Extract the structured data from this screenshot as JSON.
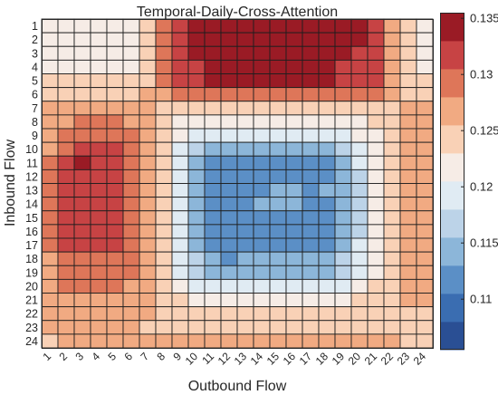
{
  "chart_data": {
    "type": "heatmap",
    "title": "Temporal-Daily-Cross-Attention",
    "xlabel": "Outbound Flow",
    "ylabel": "Inbound Flow",
    "x_categories": [
      "1",
      "2",
      "3",
      "4",
      "5",
      "6",
      "7",
      "8",
      "9",
      "10",
      "11",
      "12",
      "13",
      "14",
      "15",
      "16",
      "17",
      "18",
      "19",
      "20",
      "21",
      "22",
      "23",
      "24"
    ],
    "y_categories": [
      "1",
      "2",
      "3",
      "4",
      "5",
      "6",
      "7",
      "8",
      "9",
      "10",
      "11",
      "12",
      "13",
      "14",
      "15",
      "16",
      "17",
      "18",
      "19",
      "20",
      "21",
      "22",
      "23",
      "24"
    ],
    "colorbar": {
      "range": [
        0.1055,
        0.1355
      ],
      "ticks": [
        {
          "value": 0.11,
          "label": "0.11"
        },
        {
          "value": 0.115,
          "label": "0.115"
        },
        {
          "value": 0.12,
          "label": "0.12"
        },
        {
          "value": 0.125,
          "label": "0.125"
        },
        {
          "value": 0.13,
          "label": "0.13"
        },
        {
          "value": 0.135,
          "label": "0.135"
        }
      ],
      "levels": 12,
      "colors": [
        "#2a4f94",
        "#3a6db1",
        "#5b8fc6",
        "#8cb6d9",
        "#bcd3e8",
        "#e0ebf3",
        "#f6ece6",
        "#f9d1b6",
        "#f1aa82",
        "#de7659",
        "#c74344",
        "#9a1b25"
      ]
    },
    "values": [
      [
        0.123,
        0.123,
        0.123,
        0.123,
        0.123,
        0.123,
        0.1245,
        0.129,
        0.1315,
        0.134,
        0.134,
        0.134,
        0.135,
        0.135,
        0.135,
        0.135,
        0.135,
        0.135,
        0.134,
        0.133,
        0.1315,
        0.128,
        0.124,
        0.123
      ],
      [
        0.123,
        0.123,
        0.123,
        0.123,
        0.123,
        0.123,
        0.1245,
        0.129,
        0.1315,
        0.134,
        0.135,
        0.135,
        0.135,
        0.135,
        0.135,
        0.135,
        0.135,
        0.135,
        0.134,
        0.133,
        0.1315,
        0.128,
        0.124,
        0.123
      ],
      [
        0.123,
        0.123,
        0.123,
        0.123,
        0.123,
        0.123,
        0.1245,
        0.129,
        0.1315,
        0.133,
        0.134,
        0.134,
        0.134,
        0.134,
        0.135,
        0.134,
        0.134,
        0.134,
        0.133,
        0.132,
        0.131,
        0.128,
        0.124,
        0.123
      ],
      [
        0.123,
        0.123,
        0.123,
        0.123,
        0.123,
        0.123,
        0.1245,
        0.129,
        0.131,
        0.1325,
        0.134,
        0.134,
        0.134,
        0.134,
        0.134,
        0.134,
        0.134,
        0.134,
        0.1325,
        0.132,
        0.131,
        0.128,
        0.124,
        0.123
      ],
      [
        0.124,
        0.124,
        0.124,
        0.124,
        0.124,
        0.124,
        0.125,
        0.129,
        0.131,
        0.1325,
        0.133,
        0.134,
        0.134,
        0.134,
        0.134,
        0.134,
        0.133,
        0.133,
        0.1325,
        0.1315,
        0.1305,
        0.1275,
        0.125,
        0.124
      ],
      [
        0.125,
        0.125,
        0.125,
        0.125,
        0.125,
        0.125,
        0.126,
        0.128,
        0.129,
        0.13,
        0.13,
        0.13,
        0.13,
        0.13,
        0.13,
        0.13,
        0.13,
        0.13,
        0.13,
        0.1295,
        0.129,
        0.127,
        0.1255,
        0.125
      ],
      [
        0.126,
        0.1265,
        0.1265,
        0.1265,
        0.1265,
        0.126,
        0.126,
        0.1255,
        0.125,
        0.125,
        0.125,
        0.125,
        0.125,
        0.125,
        0.125,
        0.125,
        0.125,
        0.125,
        0.125,
        0.125,
        0.125,
        0.1255,
        0.126,
        0.126
      ],
      [
        0.127,
        0.1275,
        0.1285,
        0.1285,
        0.1285,
        0.1275,
        0.1265,
        0.1245,
        0.123,
        0.122,
        0.122,
        0.122,
        0.122,
        0.122,
        0.122,
        0.122,
        0.122,
        0.122,
        0.122,
        0.122,
        0.1235,
        0.1255,
        0.1265,
        0.1265
      ],
      [
        0.1275,
        0.129,
        0.13,
        0.13,
        0.13,
        0.1285,
        0.127,
        0.1245,
        0.1215,
        0.1195,
        0.1185,
        0.1185,
        0.1185,
        0.1185,
        0.1185,
        0.1185,
        0.1185,
        0.1185,
        0.119,
        0.121,
        0.123,
        0.1255,
        0.1265,
        0.127
      ],
      [
        0.128,
        0.13,
        0.131,
        0.131,
        0.131,
        0.1295,
        0.1275,
        0.1245,
        0.1195,
        0.1165,
        0.115,
        0.115,
        0.115,
        0.115,
        0.115,
        0.115,
        0.115,
        0.115,
        0.1165,
        0.1195,
        0.1225,
        0.1255,
        0.1265,
        0.127
      ],
      [
        0.1285,
        0.1305,
        0.1335,
        0.131,
        0.131,
        0.13,
        0.1275,
        0.124,
        0.119,
        0.1145,
        0.1115,
        0.1105,
        0.1115,
        0.1125,
        0.1125,
        0.1125,
        0.1115,
        0.1125,
        0.1145,
        0.1185,
        0.122,
        0.1255,
        0.1265,
        0.127
      ],
      [
        0.1285,
        0.131,
        0.131,
        0.131,
        0.131,
        0.13,
        0.1275,
        0.124,
        0.119,
        0.114,
        0.111,
        0.1105,
        0.112,
        0.1125,
        0.1125,
        0.1125,
        0.112,
        0.1125,
        0.114,
        0.118,
        0.122,
        0.1255,
        0.1265,
        0.127
      ],
      [
        0.1285,
        0.131,
        0.131,
        0.131,
        0.131,
        0.13,
        0.1275,
        0.124,
        0.1185,
        0.114,
        0.111,
        0.1125,
        0.1105,
        0.1125,
        0.113,
        0.113,
        0.1125,
        0.113,
        0.114,
        0.118,
        0.122,
        0.1255,
        0.1265,
        0.127
      ],
      [
        0.1285,
        0.131,
        0.131,
        0.131,
        0.131,
        0.13,
        0.1275,
        0.124,
        0.1185,
        0.114,
        0.111,
        0.111,
        0.112,
        0.113,
        0.113,
        0.113,
        0.1125,
        0.1125,
        0.114,
        0.118,
        0.122,
        0.1255,
        0.1265,
        0.127
      ],
      [
        0.1285,
        0.131,
        0.131,
        0.131,
        0.131,
        0.13,
        0.1275,
        0.124,
        0.1185,
        0.114,
        0.1105,
        0.1105,
        0.1115,
        0.1125,
        0.1125,
        0.1125,
        0.1115,
        0.1125,
        0.114,
        0.118,
        0.122,
        0.1255,
        0.1265,
        0.127
      ],
      [
        0.1285,
        0.131,
        0.131,
        0.131,
        0.131,
        0.13,
        0.1275,
        0.124,
        0.1185,
        0.114,
        0.1105,
        0.111,
        0.111,
        0.1115,
        0.112,
        0.1105,
        0.111,
        0.1125,
        0.114,
        0.118,
        0.122,
        0.1255,
        0.1265,
        0.127
      ],
      [
        0.1285,
        0.1305,
        0.1305,
        0.1305,
        0.1305,
        0.1295,
        0.1275,
        0.124,
        0.119,
        0.1145,
        0.1115,
        0.1115,
        0.112,
        0.1125,
        0.1125,
        0.1125,
        0.112,
        0.1125,
        0.1145,
        0.1185,
        0.122,
        0.1255,
        0.1265,
        0.127
      ],
      [
        0.128,
        0.13,
        0.13,
        0.13,
        0.13,
        0.129,
        0.1275,
        0.1245,
        0.1195,
        0.1155,
        0.113,
        0.111,
        0.113,
        0.1135,
        0.1135,
        0.1135,
        0.113,
        0.1135,
        0.1155,
        0.119,
        0.1225,
        0.1255,
        0.1265,
        0.127
      ],
      [
        0.128,
        0.1295,
        0.13,
        0.13,
        0.1295,
        0.129,
        0.127,
        0.1245,
        0.1205,
        0.117,
        0.115,
        0.115,
        0.115,
        0.115,
        0.115,
        0.115,
        0.115,
        0.115,
        0.117,
        0.12,
        0.123,
        0.1255,
        0.1265,
        0.127
      ],
      [
        0.1275,
        0.1285,
        0.129,
        0.129,
        0.1285,
        0.128,
        0.1265,
        0.1245,
        0.1215,
        0.1195,
        0.1185,
        0.1185,
        0.1185,
        0.1185,
        0.1185,
        0.1185,
        0.1185,
        0.1185,
        0.1195,
        0.1215,
        0.1235,
        0.1255,
        0.1265,
        0.1265
      ],
      [
        0.127,
        0.1275,
        0.128,
        0.128,
        0.128,
        0.1275,
        0.1265,
        0.125,
        0.1235,
        0.122,
        0.122,
        0.122,
        0.122,
        0.122,
        0.122,
        0.122,
        0.122,
        0.122,
        0.1225,
        0.1235,
        0.1245,
        0.1255,
        0.126,
        0.126
      ],
      [
        0.1265,
        0.127,
        0.127,
        0.127,
        0.127,
        0.1265,
        0.126,
        0.125,
        0.1245,
        0.124,
        0.124,
        0.124,
        0.124,
        0.124,
        0.124,
        0.124,
        0.124,
        0.124,
        0.124,
        0.1245,
        0.125,
        0.1255,
        0.1255,
        0.1255
      ],
      [
        0.126,
        0.126,
        0.126,
        0.126,
        0.126,
        0.1258,
        0.1255,
        0.1253,
        0.1253,
        0.1253,
        0.1253,
        0.1253,
        0.1253,
        0.1253,
        0.1253,
        0.1253,
        0.1253,
        0.1253,
        0.1253,
        0.1253,
        0.1253,
        0.1255,
        0.1255,
        0.1255
      ],
      [
        0.1255,
        0.1258,
        0.1258,
        0.1258,
        0.1258,
        0.1258,
        0.1258,
        0.1262,
        0.1265,
        0.1268,
        0.1268,
        0.1268,
        0.1268,
        0.1268,
        0.1268,
        0.1268,
        0.1268,
        0.1268,
        0.1268,
        0.1265,
        0.1262,
        0.1258,
        0.1255,
        0.1255
      ]
    ]
  }
}
